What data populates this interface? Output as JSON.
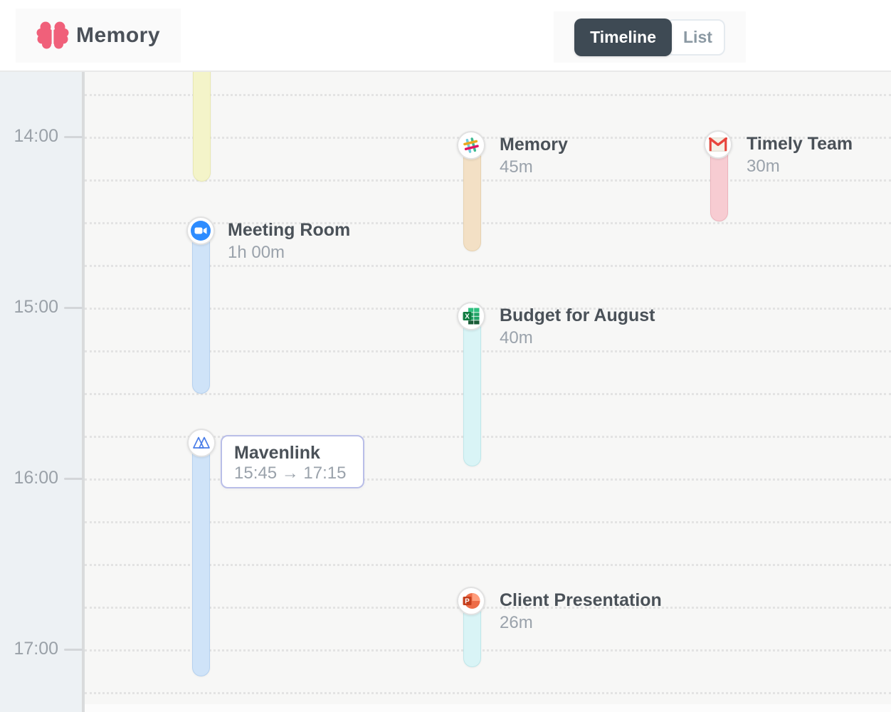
{
  "header": {
    "app_name": "Memory",
    "view_toggle": {
      "options": [
        {
          "label": "Timeline",
          "selected": true
        },
        {
          "label": "List",
          "selected": false
        }
      ]
    }
  },
  "timeline": {
    "hour_labels": [
      "14:00",
      "15:00",
      "16:00",
      "17:00"
    ],
    "events": [
      {
        "app": "unknown",
        "title": "",
        "duration": "",
        "bar_color": "#f4f4c9"
      },
      {
        "app": "zoom",
        "title": "Meeting Room",
        "duration": "1h 00m",
        "bar_color": "#cfe3f8"
      },
      {
        "app": "mavenlink",
        "title": "Mavenlink",
        "duration": "",
        "time_range": "15:45 → 17:15",
        "bar_color": "#cfe3f8"
      },
      {
        "app": "slack",
        "title": "Memory",
        "duration": "45m",
        "bar_color": "#f3e0c5"
      },
      {
        "app": "excel",
        "title": "Budget for August",
        "duration": "40m",
        "bar_color": "#d9f4f6"
      },
      {
        "app": "powerpoint",
        "title": "Client Presentation",
        "duration": "26m",
        "bar_color": "#d9f4f6"
      },
      {
        "app": "gmail",
        "title": "Timely Team",
        "duration": "30m",
        "bar_color": "#f7ccd2"
      }
    ]
  },
  "colors": {
    "accent_dark": "#3e4a54",
    "brand_pink": "#f0607a",
    "sidebar_bg": "#edf1f4",
    "main_bg": "#f7f7f6",
    "blue_bar": "#cfe3f8",
    "yellow_bar": "#f4f4c9",
    "tan_bar": "#f3e0c5",
    "cyan_bar": "#d9f4f6",
    "pink_bar": "#f7ccd2"
  }
}
